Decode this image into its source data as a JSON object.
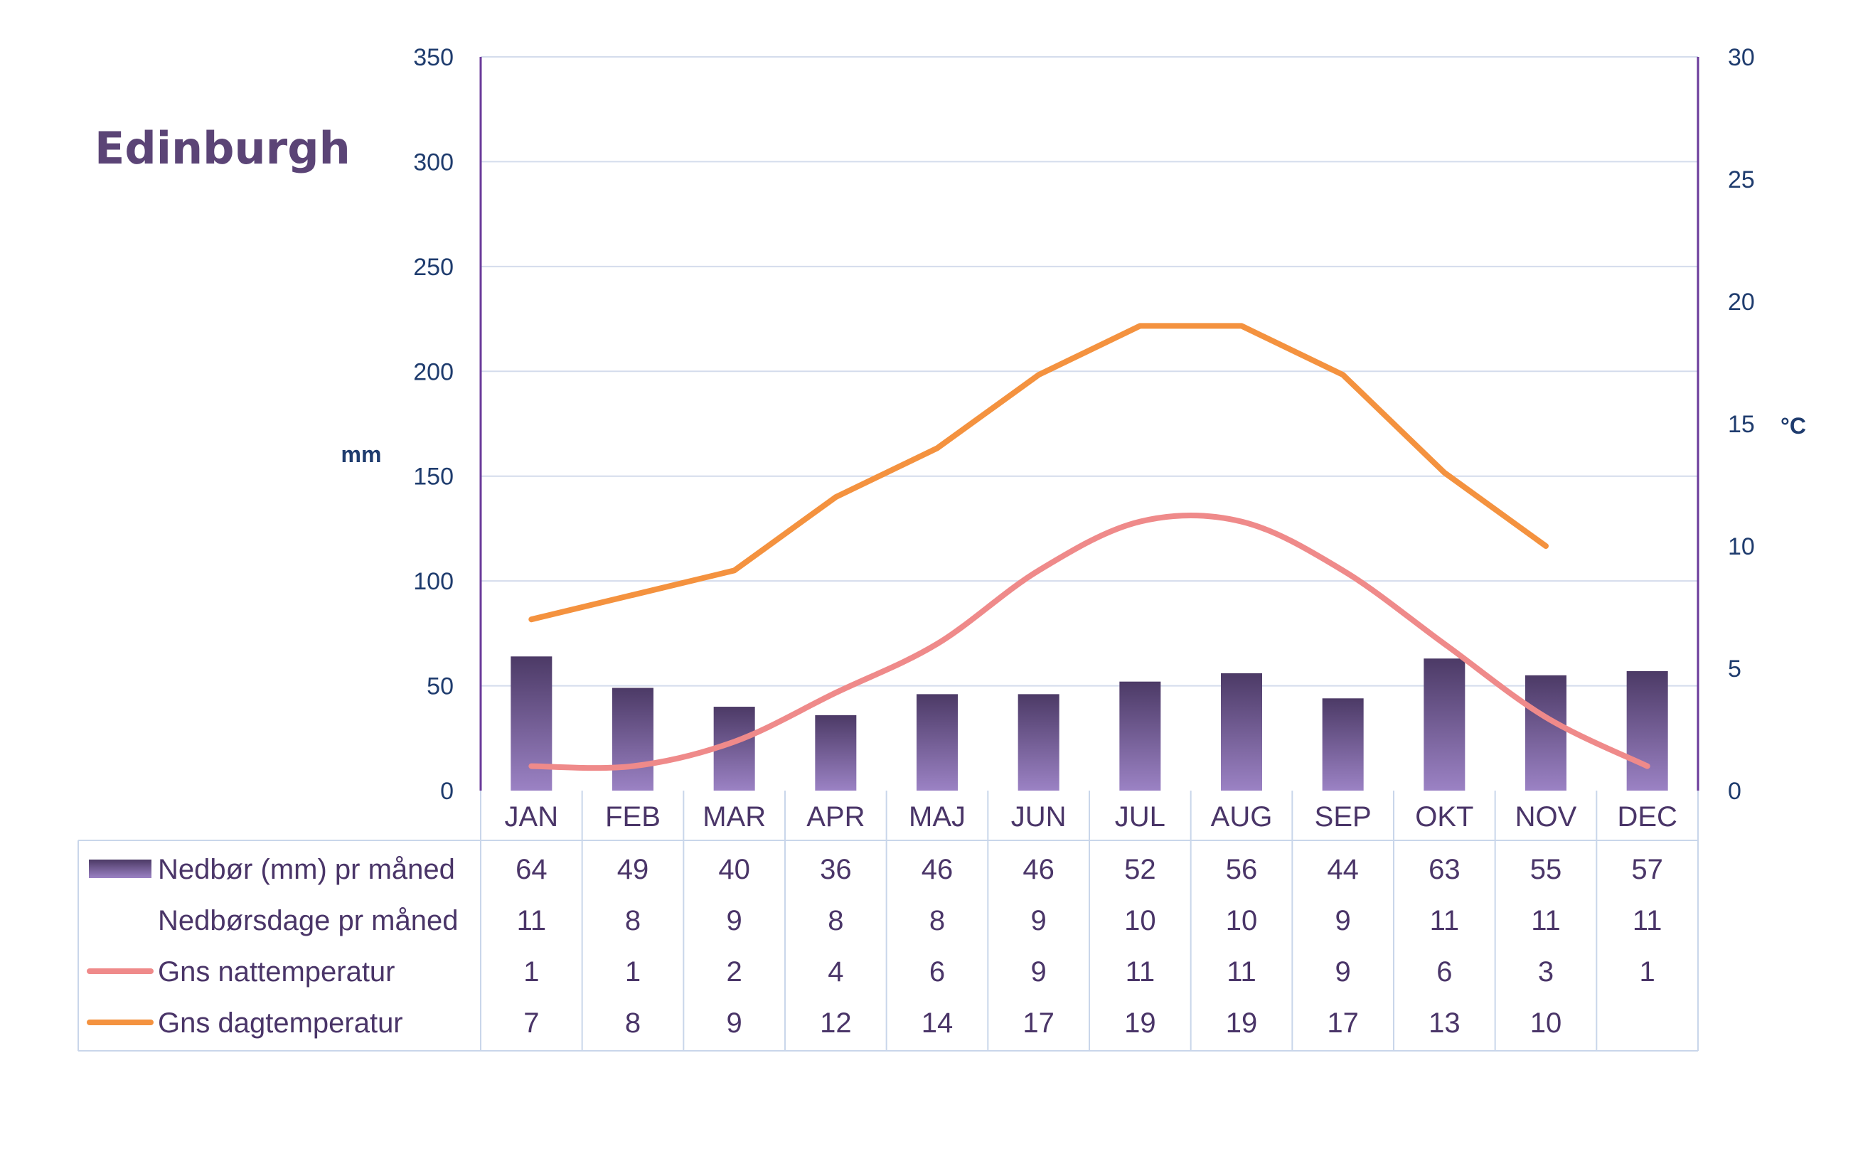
{
  "chart_data": {
    "type": "bar",
    "title": "Edinburgh",
    "categories": [
      "JAN",
      "FEB",
      "MAR",
      "APR",
      "MAJ",
      "JUN",
      "JUL",
      "AUG",
      "SEP",
      "OKT",
      "NOV",
      "DEC"
    ],
    "y_left": {
      "label": "mm",
      "min": 0,
      "max": 350,
      "ticks": [
        "0",
        "50",
        "100",
        "150",
        "200",
        "250",
        "300",
        "350"
      ]
    },
    "y_right": {
      "label": "°C",
      "min": 0,
      "max": 30,
      "ticks": [
        "0",
        "5",
        "10",
        "15",
        "20",
        "25",
        "30"
      ]
    },
    "grid": true,
    "series": [
      {
        "name": "Nedbør (mm) pr måned",
        "type": "bar",
        "axis": "left",
        "values": [
          64,
          49,
          40,
          36,
          46,
          46,
          52,
          56,
          44,
          63,
          55,
          57
        ]
      },
      {
        "name": "Nedbørsdage pr måned",
        "type": "table",
        "values": [
          11,
          8,
          9,
          8,
          8,
          9,
          10,
          10,
          9,
          11,
          11,
          11
        ]
      },
      {
        "name": "Gns nattemperatur",
        "type": "line",
        "axis": "right",
        "smooth": true,
        "values": [
          1,
          1,
          2,
          4,
          6,
          9,
          11,
          11,
          9,
          6,
          3,
          1
        ]
      },
      {
        "name": "Gns dagtemperatur",
        "type": "line",
        "axis": "right",
        "values": [
          7,
          8,
          9,
          12,
          14,
          17,
          19,
          19,
          17,
          13,
          10,
          null
        ]
      }
    ],
    "colors": {
      "bar_dark": "#4c3a66",
      "bar_light": "#9b82c4",
      "night_line": "#ef8a8a",
      "day_line": "#f4923f",
      "axis_line": "#6a3a9a",
      "grid": "#d4dcec",
      "table_border": "#c9d6ea"
    }
  }
}
